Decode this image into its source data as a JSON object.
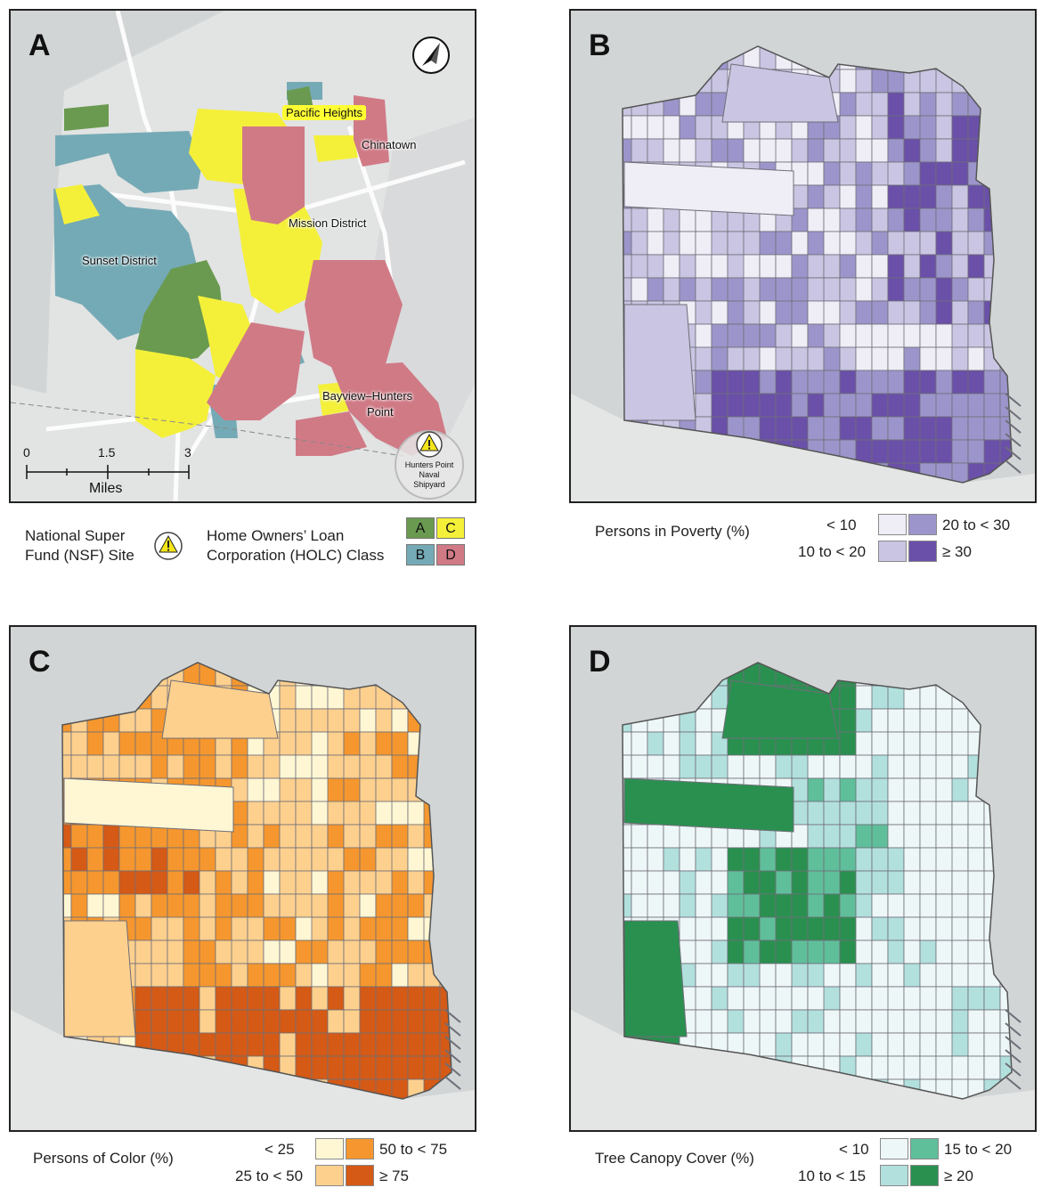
{
  "panels": {
    "a": {
      "letter": "A",
      "labels": {
        "pacific_heights": "Pacific Heights",
        "chinatown": "Chinatown",
        "mission_district": "Mission District",
        "sunset_district": "Sunset District",
        "bayview_1": "Bayview–Hunters",
        "bayview_2": "Point",
        "nsf_site_1": "Hunters Point",
        "nsf_site_2": "Naval",
        "nsf_site_3": "Shipyard"
      },
      "scale_bar": {
        "ticks": [
          "0",
          "1.5",
          "3"
        ],
        "unit": "Miles"
      },
      "legend": {
        "nsf_title_1": "National Super",
        "nsf_title_2": "Fund (NSF) Site",
        "holc_title_1": "Home Owners’ Loan",
        "holc_title_2": "Corporation (HOLC) Class",
        "classes": [
          {
            "label": "A",
            "color": "#6a9a50"
          },
          {
            "label": "C",
            "color": "#f4f03a"
          },
          {
            "label": "B",
            "color": "#74aab5"
          },
          {
            "label": "D",
            "color": "#d07a86"
          }
        ]
      }
    },
    "b": {
      "letter": "B",
      "legend_title": "Persons in Poverty (%)",
      "classes": [
        {
          "label": "< 10",
          "color": "#efedf6"
        },
        {
          "label": "20 to < 30",
          "color": "#9c95cb"
        },
        {
          "label": "10 to < 20",
          "color": "#c9c5e2"
        },
        {
          "label": "≥ 30",
          "color": "#6a50a8"
        }
      ]
    },
    "c": {
      "letter": "C",
      "legend_title": "Persons of Color (%)",
      "classes": [
        {
          "label": "< 25",
          "color": "#fff7d4"
        },
        {
          "label": "50 to < 75",
          "color": "#f5972e"
        },
        {
          "label": "25 to < 50",
          "color": "#fdd08e"
        },
        {
          "label": "≥ 75",
          "color": "#d45a16"
        }
      ]
    },
    "d": {
      "letter": "D",
      "legend_title": "Tree Canopy Cover (%)",
      "classes": [
        {
          "label": "< 10",
          "color": "#eef7f8"
        },
        {
          "label": "15 to < 20",
          "color": "#5fbf9a"
        },
        {
          "label": "10 to < 15",
          "color": "#b2e0dd"
        },
        {
          "label": "≥ 20",
          "color": "#2a9050"
        }
      ]
    }
  }
}
